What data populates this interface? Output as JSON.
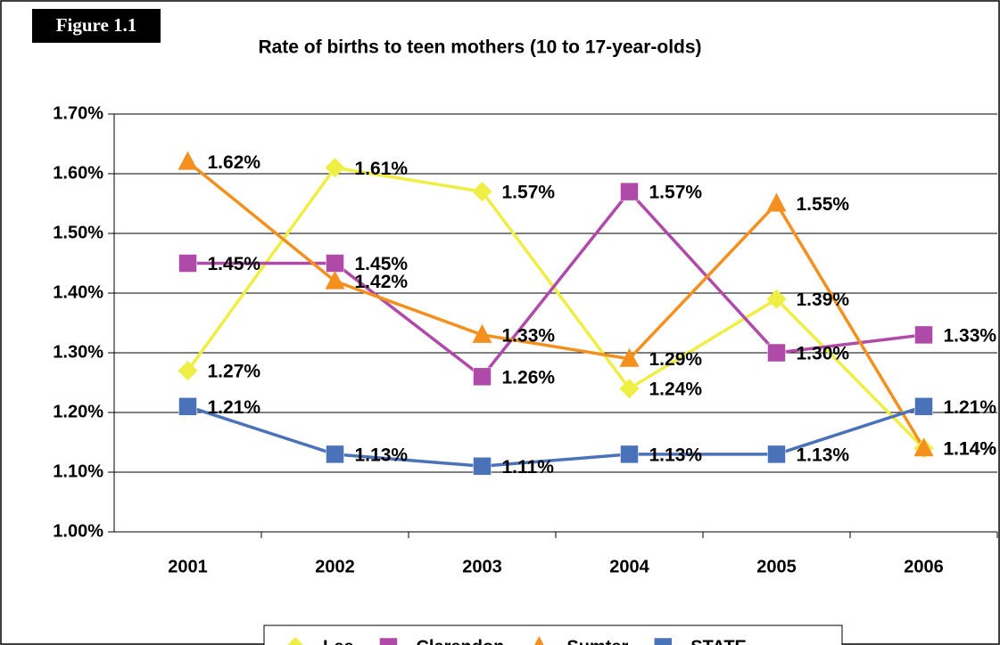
{
  "chart_data": {
    "type": "line",
    "figure_label": "Figure 1.1",
    "title": "Rate of births to teen mothers (10 to 17-year-olds)",
    "categories": [
      "2001",
      "2002",
      "2003",
      "2004",
      "2005",
      "2006"
    ],
    "series": [
      {
        "name": "Lee",
        "color": "#eeee44",
        "marker": "diamond",
        "values": [
          1.27,
          1.61,
          1.57,
          1.24,
          1.39,
          1.14
        ],
        "value_labels": [
          "1.27%",
          "1.61%",
          "1.57%",
          "1.24%",
          "1.39%",
          "1.14%"
        ]
      },
      {
        "name": "Clarendon",
        "color": "#b04aa8",
        "marker": "square",
        "values": [
          1.45,
          1.45,
          1.26,
          1.57,
          1.3,
          1.33
        ],
        "value_labels": [
          "1.45%",
          "1.45%",
          "1.26%",
          "1.57%",
          "1.30%",
          "1.33%"
        ]
      },
      {
        "name": "Sumter",
        "color": "#f4901e",
        "marker": "triangle",
        "values": [
          1.62,
          1.42,
          1.33,
          1.29,
          1.55,
          1.14
        ],
        "value_labels": [
          "1.62%",
          "1.42%",
          "1.33%",
          "1.29%",
          "1.55%",
          "1.14%"
        ]
      },
      {
        "name": "STATE",
        "color": "#4a72b8",
        "marker": "square",
        "values": [
          1.21,
          1.13,
          1.11,
          1.13,
          1.13,
          1.21
        ],
        "value_labels": [
          "1.21%",
          "1.13%",
          "1.11%",
          "1.13%",
          "1.13%",
          "1.21%"
        ]
      }
    ],
    "ylim": [
      1.0,
      1.7
    ],
    "yticks": [
      {
        "value": 1.0,
        "label": "1.00%"
      },
      {
        "value": 1.1,
        "label": "1.10%"
      },
      {
        "value": 1.2,
        "label": "1.20%"
      },
      {
        "value": 1.3,
        "label": "1.30%"
      },
      {
        "value": 1.4,
        "label": "1.40%"
      },
      {
        "value": 1.5,
        "label": "1.50%"
      },
      {
        "value": 1.6,
        "label": "1.60%"
      },
      {
        "value": 1.7,
        "label": "1.70%"
      }
    ],
    "grid": true,
    "legend": "bottom"
  }
}
